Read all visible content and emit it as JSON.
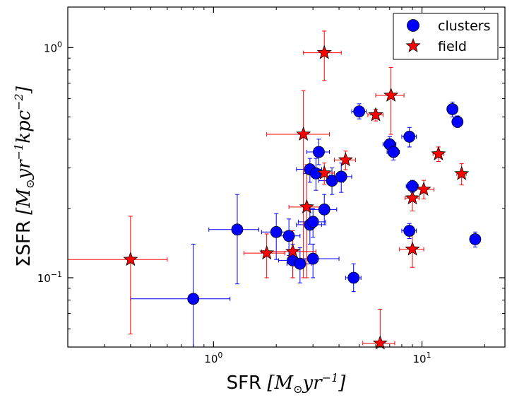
{
  "chart_data": {
    "type": "scatter",
    "xscale": "log",
    "yscale": "log",
    "xlim": [
      0.2,
      25
    ],
    "ylim": [
      0.05,
      1.5
    ],
    "xlabel": "SFR [M_⊙yr⁻¹]",
    "ylabel": "ΣSFR [M_⊙yr⁻¹kpc⁻²]",
    "xticks": [
      {
        "value": 1,
        "base": "10",
        "exp": "0"
      },
      {
        "value": 10,
        "base": "10",
        "exp": "1"
      }
    ],
    "yticks": [
      {
        "value": 0.1,
        "base": "10",
        "exp": "−1"
      },
      {
        "value": 1,
        "base": "10",
        "exp": "0"
      }
    ],
    "legend": {
      "position": "top-right",
      "entries": [
        "clusters",
        "field"
      ]
    },
    "series": [
      {
        "name": "clusters",
        "marker": "circle",
        "color": "#0000ff",
        "points": [
          {
            "x": 0.8,
            "y": 0.081,
            "xerr": [
              0.4,
              1.2
            ],
            "yerr": [
              0.05,
              0.14
            ]
          },
          {
            "x": 1.3,
            "y": 0.162,
            "xerr": [
              0.95,
              1.65
            ],
            "yerr": [
              0.094,
              0.23
            ]
          },
          {
            "x": 2.0,
            "y": 0.158,
            "xerr": [
              1.7,
              2.3
            ],
            "yerr": [
              0.12,
              0.19
            ]
          },
          {
            "x": 2.3,
            "y": 0.152,
            "xerr": [
              2.0,
              2.6
            ],
            "yerr": [
              0.125,
              0.18
            ]
          },
          {
            "x": 2.4,
            "y": 0.119,
            "xerr": [
              2.05,
              2.75
            ],
            "yerr": [
              0.1,
              0.14
            ]
          },
          {
            "x": 2.6,
            "y": 0.115,
            "xerr": [
              2.25,
              2.95
            ],
            "yerr": [
              0.095,
              0.135
            ]
          },
          {
            "x": 2.9,
            "y": 0.17,
            "xerr": [
              2.5,
              3.3
            ],
            "yerr": [
              0.14,
              0.2
            ]
          },
          {
            "x": 3.0,
            "y": 0.175,
            "xerr": [
              2.55,
              3.45
            ],
            "yerr": [
              0.15,
              0.2
            ]
          },
          {
            "x": 3.0,
            "y": 0.121,
            "xerr": [
              2.4,
              4.0
            ],
            "yerr": [
              0.1,
              0.14
            ]
          },
          {
            "x": 2.9,
            "y": 0.296,
            "xerr": [
              2.5,
              3.3
            ],
            "yerr": [
              0.26,
              0.33
            ]
          },
          {
            "x": 3.1,
            "y": 0.284,
            "xerr": [
              2.7,
              3.5
            ],
            "yerr": [
              0.24,
              0.33
            ]
          },
          {
            "x": 3.2,
            "y": 0.352,
            "xerr": [
              2.8,
              3.6
            ],
            "yerr": [
              0.31,
              0.4
            ]
          },
          {
            "x": 3.4,
            "y": 0.198,
            "xerr": [
              2.9,
              3.9
            ],
            "yerr": [
              0.17,
              0.23
            ]
          },
          {
            "x": 3.7,
            "y": 0.264,
            "xerr": [
              3.2,
              4.2
            ],
            "yerr": [
              0.23,
              0.3
            ]
          },
          {
            "x": 4.1,
            "y": 0.275,
            "xerr": [
              3.6,
              4.6
            ],
            "yerr": [
              0.235,
              0.315
            ]
          },
          {
            "x": 4.7,
            "y": 0.1,
            "xerr": [
              4.3,
              5.1
            ],
            "yerr": [
              0.087,
              0.115
            ]
          },
          {
            "x": 5.0,
            "y": 0.528,
            "xerr": [
              4.6,
              5.4
            ],
            "yerr": [
              0.49,
              0.57
            ]
          },
          {
            "x": 7.0,
            "y": 0.38,
            "xerr": [
              6.5,
              7.5
            ],
            "yerr": [
              0.35,
              0.41
            ]
          },
          {
            "x": 7.3,
            "y": 0.352,
            "xerr": [
              6.8,
              7.8
            ],
            "yerr": [
              0.325,
              0.38
            ]
          },
          {
            "x": 8.7,
            "y": 0.41,
            "xerr": [
              8.0,
              9.4
            ],
            "yerr": [
              0.37,
              0.45
            ]
          },
          {
            "x": 9.0,
            "y": 0.25,
            "xerr": [
              8.4,
              9.6
            ],
            "yerr": [
              0.235,
              0.265
            ]
          },
          {
            "x": 8.7,
            "y": 0.16,
            "xerr": [
              8.0,
              9.4
            ],
            "yerr": [
              0.148,
              0.172
            ]
          },
          {
            "x": 14.0,
            "y": 0.54,
            "xerr": [
              13.3,
              14.7
            ],
            "yerr": [
              0.5,
              0.58
            ]
          },
          {
            "x": 14.8,
            "y": 0.476,
            "xerr": [
              14.1,
              15.5
            ],
            "yerr": [
              0.45,
              0.505
            ]
          },
          {
            "x": 18.0,
            "y": 0.147,
            "xerr": [
              17.3,
              18.7
            ],
            "yerr": [
              0.136,
              0.158
            ]
          }
        ]
      },
      {
        "name": "field",
        "marker": "star",
        "color": "#ff0000",
        "points": [
          {
            "x": 0.4,
            "y": 0.12,
            "xerr": [
              0.2,
              0.6
            ],
            "yerr": [
              0.057,
              0.185
            ]
          },
          {
            "x": 1.8,
            "y": 0.128,
            "xerr": [
              1.4,
              2.2
            ],
            "yerr": [
              0.1,
              0.155
            ]
          },
          {
            "x": 2.4,
            "y": 0.13,
            "xerr": [
              1.7,
              3.1
            ],
            "yerr": [
              0.1,
              0.16
            ]
          },
          {
            "x": 2.8,
            "y": 0.203,
            "xerr": [
              2.3,
              3.3
            ],
            "yerr": [
              0.1,
              0.31
            ]
          },
          {
            "x": 2.7,
            "y": 0.42,
            "xerr": [
              1.8,
              3.6
            ],
            "yerr": [
              0.1,
              0.65
            ]
          },
          {
            "x": 3.4,
            "y": 0.95,
            "xerr": [
              2.7,
              4.1
            ],
            "yerr": [
              0.72,
              1.18
            ]
          },
          {
            "x": 3.4,
            "y": 0.285,
            "xerr": [
              3.0,
              3.8
            ],
            "yerr": [
              0.255,
              0.315
            ]
          },
          {
            "x": 4.3,
            "y": 0.325,
            "xerr": [
              3.8,
              4.8
            ],
            "yerr": [
              0.295,
              0.355
            ]
          },
          {
            "x": 6.0,
            "y": 0.51,
            "xerr": [
              5.5,
              6.5
            ],
            "yerr": [
              0.48,
              0.54
            ]
          },
          {
            "x": 7.1,
            "y": 0.62,
            "xerr": [
              6.0,
              8.2
            ],
            "yerr": [
              0.42,
              0.82
            ]
          },
          {
            "x": 6.3,
            "y": 0.052,
            "xerr": [
              5.2,
              7.4
            ],
            "yerr": [
              0.03,
              0.073
            ]
          },
          {
            "x": 9.0,
            "y": 0.222,
            "xerr": [
              8.3,
              9.7
            ],
            "yerr": [
              0.195,
              0.25
            ]
          },
          {
            "x": 9.0,
            "y": 0.133,
            "xerr": [
              7.8,
              10.2
            ],
            "yerr": [
              0.111,
              0.155
            ]
          },
          {
            "x": 10.2,
            "y": 0.242,
            "xerr": [
              9.0,
              11.4
            ],
            "yerr": [
              0.22,
              0.265
            ]
          },
          {
            "x": 12.0,
            "y": 0.345,
            "xerr": [
              11.3,
              12.7
            ],
            "yerr": [
              0.32,
              0.37
            ]
          },
          {
            "x": 15.5,
            "y": 0.283,
            "xerr": [
              14.7,
              16.3
            ],
            "yerr": [
              0.253,
              0.313
            ]
          }
        ]
      }
    ]
  }
}
